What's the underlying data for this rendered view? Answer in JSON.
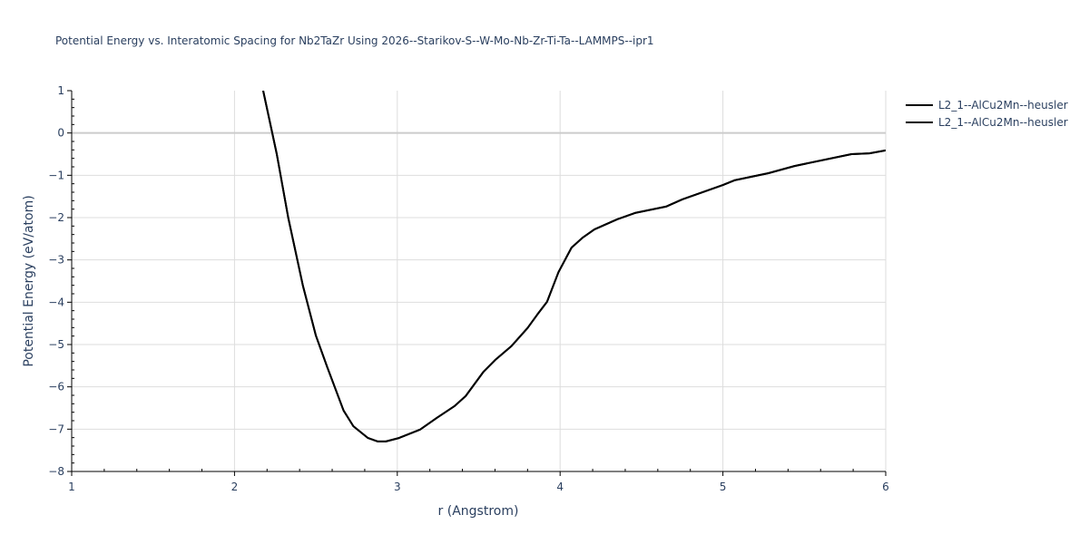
{
  "title": "Potential Energy vs. Interatomic Spacing for Nb2TaZr Using 2026--Starikov-S--W-Mo-Nb-Zr-Ti-Ta--LAMMPS--ipr1",
  "legend": {
    "items": [
      {
        "label": "L2_1--AlCu2Mn--heusler",
        "color": "#000000"
      },
      {
        "label": "L2_1--AlCu2Mn--heusler",
        "color": "#000000"
      }
    ]
  },
  "chart_data": {
    "type": "line",
    "title": "Potential Energy vs. Interatomic Spacing for Nb2TaZr Using 2026--Starikov-S--W-Mo-Nb-Zr-Ti-Ta--LAMMPS--ipr1",
    "xlabel": "r (Angstrom)",
    "ylabel": "Potential Energy (eV/atom)",
    "xlim": [
      1,
      6
    ],
    "ylim": [
      -8,
      1
    ],
    "xticks": [
      1,
      2,
      3,
      4,
      5,
      6
    ],
    "yticks": [
      1,
      0,
      -1,
      -2,
      -3,
      -4,
      -5,
      -6,
      -7,
      -8
    ],
    "grid": true,
    "legend_position": "right",
    "series": [
      {
        "name": "L2_1--AlCu2Mn--heusler",
        "color": "#000000",
        "x": [
          2.176,
          2.26,
          2.33,
          2.42,
          2.5,
          2.57,
          2.67,
          2.73,
          2.82,
          2.88,
          2.93,
          3.01,
          3.14,
          3.24,
          3.35,
          3.42,
          3.53,
          3.6,
          3.7,
          3.8,
          3.86,
          3.92,
          3.99,
          4.07,
          4.14,
          4.21,
          4.35,
          4.46,
          4.65,
          4.75,
          5.0,
          5.07,
          5.28,
          5.44,
          5.79,
          5.9,
          6.0
        ],
        "y": [
          1.0,
          -0.5,
          -2.0,
          -3.6,
          -4.79,
          -5.54,
          -6.56,
          -6.93,
          -7.21,
          -7.29,
          -7.29,
          -7.21,
          -7.01,
          -6.74,
          -6.46,
          -6.22,
          -5.64,
          -5.37,
          -5.04,
          -4.61,
          -4.29,
          -3.99,
          -3.29,
          -2.71,
          -2.47,
          -2.28,
          -2.04,
          -1.89,
          -1.74,
          -1.57,
          -1.23,
          -1.12,
          -0.95,
          -0.78,
          -0.5,
          -0.48,
          -0.41
        ]
      },
      {
        "name": "L2_1--AlCu2Mn--heusler",
        "color": "#000000",
        "x": [
          2.176,
          2.26,
          2.33,
          2.42,
          2.5,
          2.57,
          2.67,
          2.73,
          2.82,
          2.88,
          2.93,
          3.01,
          3.14,
          3.24,
          3.35,
          3.42,
          3.53,
          3.6,
          3.7,
          3.8,
          3.86,
          3.92,
          3.99,
          4.07,
          4.14,
          4.21,
          4.35,
          4.46,
          4.65,
          4.75,
          5.0,
          5.07,
          5.28,
          5.44,
          5.79,
          5.9,
          6.0
        ],
        "y": [
          1.0,
          -0.5,
          -2.0,
          -3.6,
          -4.79,
          -5.54,
          -6.56,
          -6.93,
          -7.21,
          -7.29,
          -7.29,
          -7.21,
          -7.01,
          -6.74,
          -6.46,
          -6.22,
          -5.64,
          -5.37,
          -5.04,
          -4.61,
          -4.29,
          -3.99,
          -3.29,
          -2.71,
          -2.47,
          -2.28,
          -2.04,
          -1.89,
          -1.74,
          -1.57,
          -1.23,
          -1.12,
          -0.95,
          -0.78,
          -0.5,
          -0.48,
          -0.41
        ]
      }
    ]
  }
}
